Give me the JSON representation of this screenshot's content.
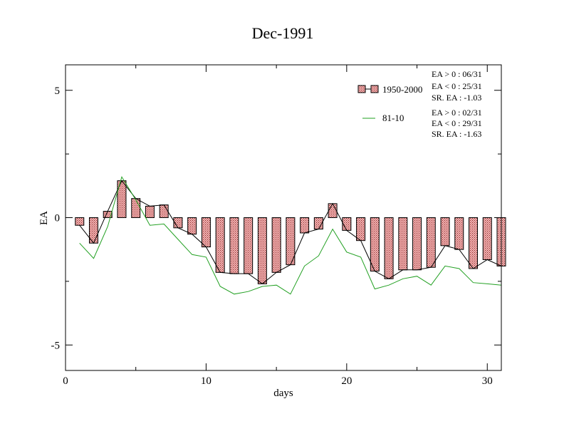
{
  "chart_data": {
    "type": "bar",
    "title": "Dec-1991",
    "xlabel": "days",
    "ylabel": "EA",
    "xlim": [
      0,
      31
    ],
    "ylim": [
      -6,
      6
    ],
    "x_ticks": [
      0,
      10,
      20,
      30
    ],
    "x_tick_labels": [
      "0",
      "10",
      "20",
      "30"
    ],
    "y_ticks": [
      5,
      0,
      -5
    ],
    "y_tick_labels": [
      "5",
      "0",
      "-5"
    ],
    "grid": false,
    "legend_position": "top-right",
    "x": [
      1,
      2,
      3,
      4,
      5,
      6,
      7,
      8,
      9,
      10,
      11,
      12,
      13,
      14,
      15,
      16,
      17,
      18,
      19,
      20,
      21,
      22,
      23,
      24,
      25,
      26,
      27,
      28,
      29,
      30,
      31
    ],
    "series": [
      {
        "name": "1950-2000",
        "kind": "bar+line",
        "color": "#e07070",
        "values": [
          -0.3,
          -1.0,
          0.25,
          1.45,
          0.75,
          0.45,
          0.5,
          -0.4,
          -0.65,
          -1.15,
          -2.15,
          -2.2,
          -2.2,
          -2.6,
          -2.15,
          -1.85,
          -0.6,
          -0.45,
          0.55,
          -0.5,
          -0.9,
          -2.1,
          -2.4,
          -2.05,
          -2.05,
          -1.95,
          -1.1,
          -1.25,
          -2.0,
          -1.65,
          -1.9
        ]
      },
      {
        "name": "81-10",
        "kind": "line",
        "color": "#22a022",
        "values": [
          -1.0,
          -1.6,
          -0.35,
          1.6,
          0.7,
          -0.3,
          -0.25,
          -0.85,
          -1.45,
          -1.55,
          -2.7,
          -3.0,
          -2.9,
          -2.7,
          -2.65,
          -3.0,
          -1.9,
          -1.5,
          -0.45,
          -1.35,
          -1.55,
          -2.8,
          -2.65,
          -2.4,
          -2.3,
          -2.65,
          -1.9,
          -2.0,
          -2.55,
          -2.6,
          -2.65
        ]
      }
    ],
    "stats": [
      [
        "EA > 0 : 06/31",
        "EA < 0 : 25/31",
        "SR. EA : -1.03"
      ],
      [
        "EA > 0 : 02/31",
        "EA < 0 : 29/31",
        "SR. EA : -1.63"
      ]
    ]
  }
}
